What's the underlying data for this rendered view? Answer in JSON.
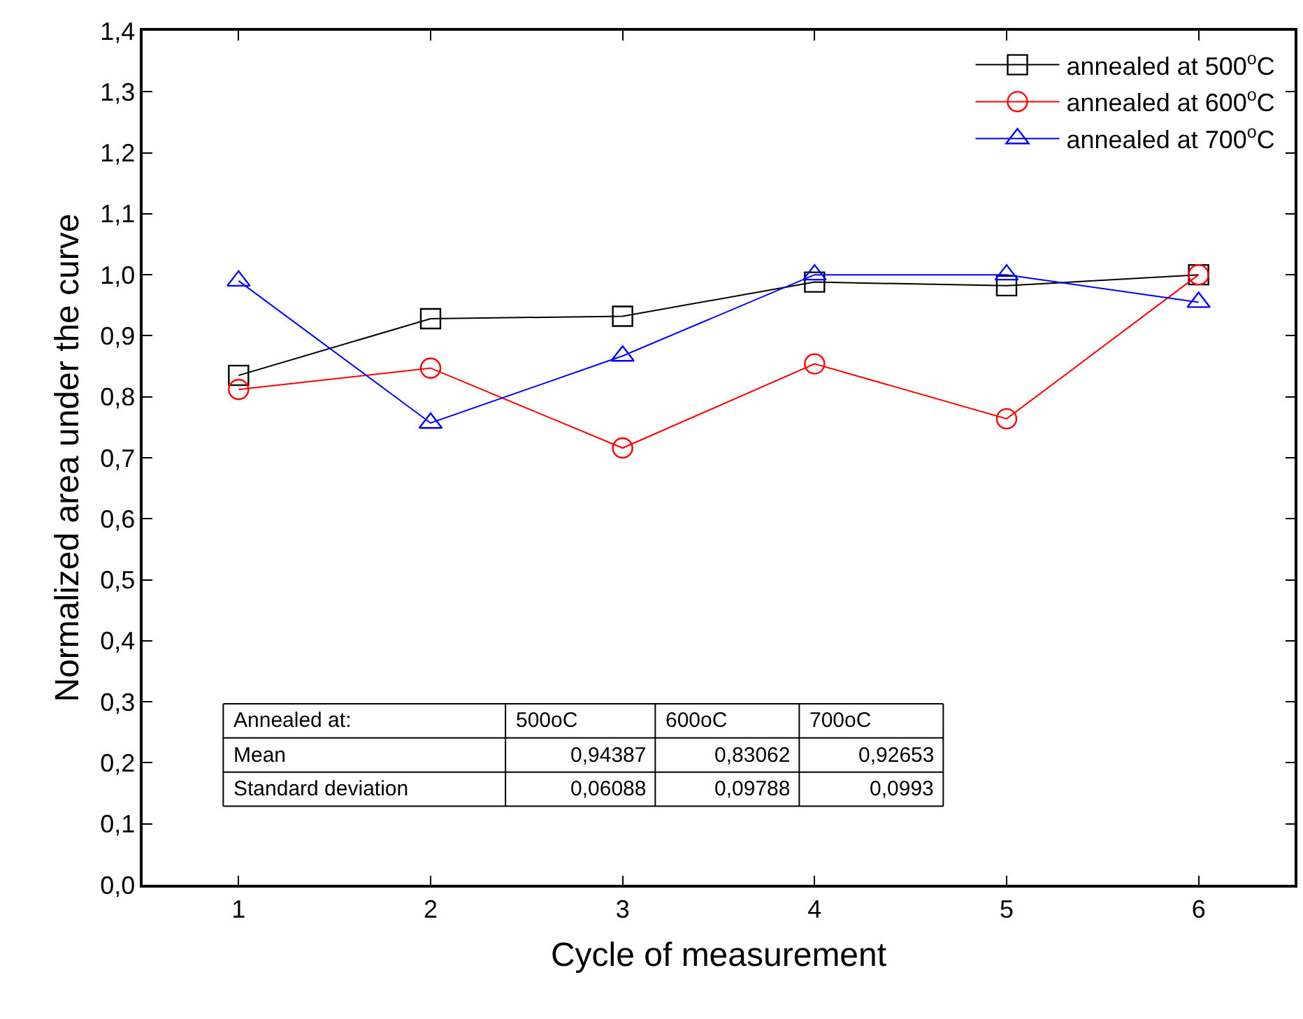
{
  "chart_data": {
    "type": "line",
    "xlabel": "Cycle of measurement",
    "ylabel": "Normalized area under the curve",
    "x": [
      1,
      2,
      3,
      4,
      5,
      6
    ],
    "series": [
      {
        "name": "annealed at 500$^{o}$C",
        "color": "#000000",
        "marker": "square",
        "values": [
          0.835,
          0.928,
          0.932,
          0.988,
          0.982,
          1.0
        ]
      },
      {
        "name": "annealed at 600$^{o}$C",
        "color": "#ff0000",
        "marker": "circle",
        "values": [
          0.812,
          0.847,
          0.716,
          0.854,
          0.764,
          1.0
        ]
      },
      {
        "name": "annealed at 700$^{o}$C",
        "color": "#0000ff",
        "marker": "triangle",
        "values": [
          0.99,
          0.757,
          0.867,
          1.0,
          1.0,
          0.955
        ]
      }
    ],
    "xlim": [
      0.5,
      6.5
    ],
    "xticks": [
      1,
      2,
      3,
      4,
      5,
      6
    ],
    "ylim": [
      0,
      1.4
    ],
    "yticks": [
      {
        "value": 0,
        "label": "0,0"
      },
      {
        "value": 0.1,
        "label": "0,1"
      },
      {
        "value": 0.2,
        "label": "0,2"
      },
      {
        "value": 0.3,
        "label": "0,3"
      },
      {
        "value": 0.4,
        "label": "0,4"
      },
      {
        "value": 0.5,
        "label": "0,5"
      },
      {
        "value": 0.6,
        "label": "0,6"
      },
      {
        "value": 0.7,
        "label": "0,7"
      },
      {
        "value": 0.8,
        "label": "0,8"
      },
      {
        "value": 0.9,
        "label": "0,9"
      },
      {
        "value": 1.0,
        "label": "1,0"
      },
      {
        "value": 1.1,
        "label": "1,1"
      },
      {
        "value": 1.2,
        "label": "1,2"
      },
      {
        "value": 1.3,
        "label": "1,3"
      },
      {
        "value": 1.4,
        "label": "1,4"
      }
    ],
    "legend": "top right",
    "line_style": "solid",
    "annotations": [
      "Annealed at:",
      "500oC",
      "600oC",
      "700oC",
      "Mean",
      "0,94387",
      "0,83062",
      "0,92653",
      "Standard deviation",
      "0,06088",
      "0,09788",
      "0,0993"
    ]
  }
}
